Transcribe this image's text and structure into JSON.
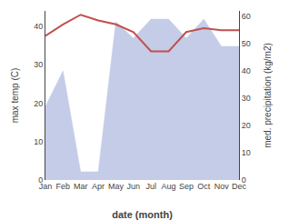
{
  "chart_data": {
    "type": "line",
    "categories": [
      "Jan",
      "Feb",
      "Mar",
      "Apr",
      "May",
      "Jun",
      "Jul",
      "Aug",
      "Sep",
      "Oct",
      "Nov",
      "Dec"
    ],
    "series": [
      {
        "type": "area",
        "axis": "y2",
        "color": "#c5cce8",
        "values": [
          27,
          40,
          3,
          3,
          58,
          52,
          59,
          59,
          52,
          59,
          49,
          49
        ]
      },
      {
        "type": "line",
        "color": "#c0504d",
        "values": [
          37.5,
          40.5,
          43.0,
          41.5,
          40.5,
          38.5,
          33.5,
          33.5,
          38.5,
          39.5,
          39.0,
          39.0
        ]
      }
    ],
    "xlabel": "date (month)",
    "ylabel": "max temp (C)",
    "y2label": "med. precipitation (kg/m2)",
    "ylim": [
      0,
      44
    ],
    "yticks": [
      0,
      10,
      20,
      30,
      40
    ],
    "y2lim": [
      0,
      62
    ],
    "y2ticks": [
      0,
      10,
      20,
      30,
      40,
      50,
      60
    ],
    "grid": false
  }
}
